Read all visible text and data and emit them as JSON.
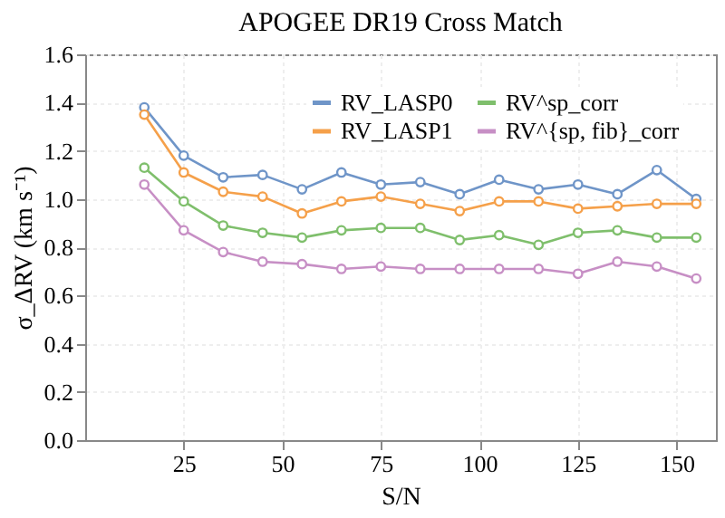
{
  "chart_data": {
    "type": "line",
    "title": "APOGEE DR19 Cross Match",
    "xlabel": "S/N",
    "ylabel": "σ_ΔRV (km s⁻¹)",
    "x": [
      15,
      25,
      35,
      45,
      55,
      65,
      75,
      85,
      95,
      105,
      115,
      125,
      135,
      145,
      155
    ],
    "series": [
      {
        "name": "RV_LASP0",
        "color": "#6f95c8",
        "values": [
          1.38,
          1.18,
          1.09,
          1.1,
          1.04,
          1.11,
          1.06,
          1.07,
          1.02,
          1.08,
          1.04,
          1.06,
          1.02,
          1.12,
          1.0
        ]
      },
      {
        "name": "RV_LASP1",
        "color": "#f5a04a",
        "values": [
          1.35,
          1.11,
          1.03,
          1.01,
          0.94,
          0.99,
          1.01,
          0.98,
          0.95,
          0.99,
          0.99,
          0.96,
          0.97,
          0.98,
          0.98
        ]
      },
      {
        "name": "RV^sp_corr",
        "color": "#7fbf6c",
        "values": [
          1.13,
          0.99,
          0.89,
          0.86,
          0.84,
          0.87,
          0.88,
          0.88,
          0.83,
          0.85,
          0.81,
          0.86,
          0.87,
          0.84,
          0.84
        ]
      },
      {
        "name": "RV^{sp, fib}_corr",
        "color": "#c78fc5",
        "values": [
          1.06,
          0.87,
          0.78,
          0.74,
          0.73,
          0.71,
          0.72,
          0.71,
          0.71,
          0.71,
          0.71,
          0.69,
          0.74,
          0.72,
          0.67
        ]
      }
    ],
    "xlim": [
      0,
      160
    ],
    "xticks": [
      25,
      50,
      75,
      100,
      125,
      150
    ],
    "ylim": [
      0,
      1.6
    ],
    "yticks": [
      {
        "value": 0,
        "label": "0.0"
      },
      {
        "value": 0.2,
        "label": "0.2"
      },
      {
        "value": 0.4,
        "label": "0.4"
      },
      {
        "value": 0.6,
        "label": "0.6"
      },
      {
        "value": 0.8,
        "label": "0.8"
      },
      {
        "value": 1.0,
        "label": "1.0"
      },
      {
        "value": 1.2,
        "label": "1.2"
      },
      {
        "value": 1.4,
        "label": "1.4"
      },
      {
        "value": 1.6,
        "label": "1.6"
      }
    ],
    "grid": true,
    "legend": "top right",
    "marker": "circle",
    "line_style": "solid"
  }
}
